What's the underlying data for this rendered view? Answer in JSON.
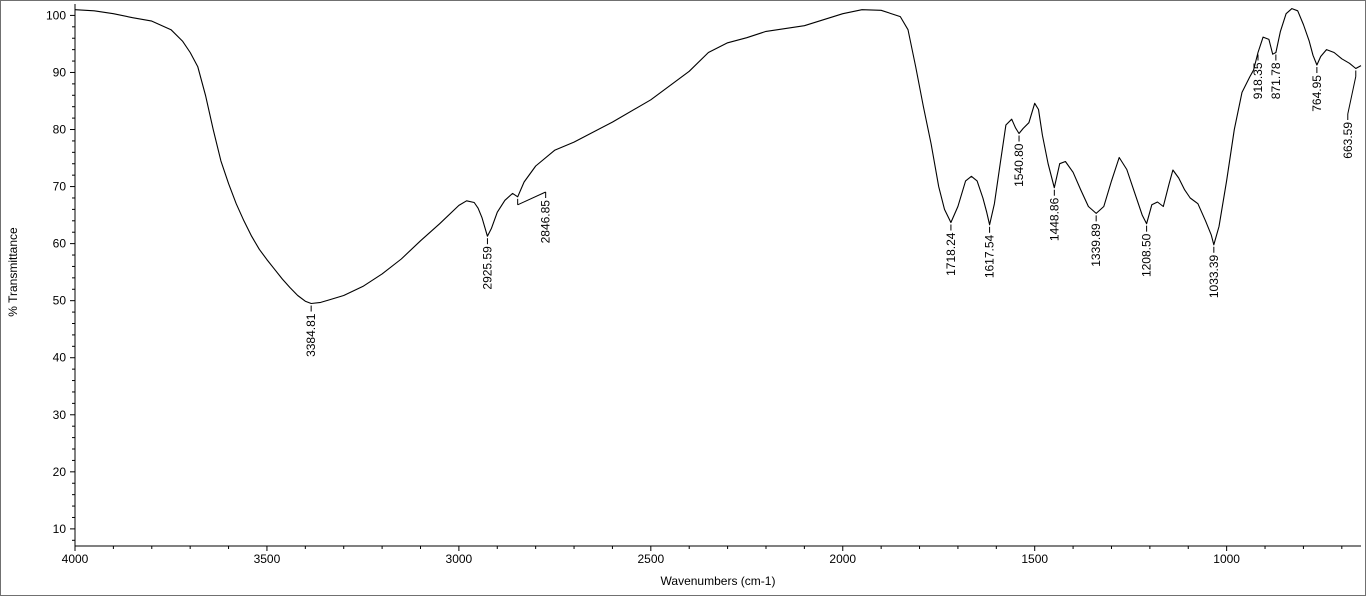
{
  "chart_data": {
    "type": "line",
    "title": "",
    "xlabel": "Wavenumbers (cm-1)",
    "ylabel": "% Transmittance",
    "xlim": [
      4000,
      650
    ],
    "ylim": [
      7,
      102
    ],
    "x_reversed": true,
    "grid": false,
    "x_ticks": [
      4000,
      3500,
      3000,
      2500,
      2000,
      1500,
      1000
    ],
    "y_ticks": [
      10,
      20,
      30,
      40,
      50,
      60,
      70,
      80,
      90,
      100
    ],
    "series": [
      {
        "points": [
          [
            4000,
            101
          ],
          [
            3950,
            100.8
          ],
          [
            3900,
            100.3
          ],
          [
            3850,
            99.6
          ],
          [
            3800,
            99.0
          ],
          [
            3750,
            97.5
          ],
          [
            3720,
            95.5
          ],
          [
            3700,
            93.5
          ],
          [
            3680,
            91
          ],
          [
            3660,
            86
          ],
          [
            3640,
            80
          ],
          [
            3620,
            74.5
          ],
          [
            3600,
            70.5
          ],
          [
            3580,
            67
          ],
          [
            3560,
            64
          ],
          [
            3540,
            61.3
          ],
          [
            3520,
            59
          ],
          [
            3500,
            57.2
          ],
          [
            3480,
            55.5
          ],
          [
            3460,
            53.8
          ],
          [
            3440,
            52.3
          ],
          [
            3420,
            50.9
          ],
          [
            3400,
            49.9
          ],
          [
            3384.81,
            49.5
          ],
          [
            3360,
            49.7
          ],
          [
            3340,
            50.1
          ],
          [
            3300,
            50.9
          ],
          [
            3250,
            52.5
          ],
          [
            3200,
            54.7
          ],
          [
            3150,
            57.3
          ],
          [
            3100,
            60.5
          ],
          [
            3050,
            63.5
          ],
          [
            3000,
            66.7
          ],
          [
            2980,
            67.5
          ],
          [
            2960,
            67.2
          ],
          [
            2950,
            66.2
          ],
          [
            2940,
            64.6
          ],
          [
            2925.59,
            61.3
          ],
          [
            2915,
            62.7
          ],
          [
            2900,
            65.5
          ],
          [
            2880,
            67.6
          ],
          [
            2860,
            68.8
          ],
          [
            2846.85,
            68.2
          ],
          [
            2830,
            70.8
          ],
          [
            2800,
            73.6
          ],
          [
            2750,
            76.4
          ],
          [
            2700,
            77.8
          ],
          [
            2600,
            81.3
          ],
          [
            2500,
            85.2
          ],
          [
            2400,
            90.2
          ],
          [
            2350,
            93.5
          ],
          [
            2300,
            95.2
          ],
          [
            2250,
            96.1
          ],
          [
            2200,
            97.2
          ],
          [
            2100,
            98.2
          ],
          [
            2000,
            100.3
          ],
          [
            1950,
            101.0
          ],
          [
            1900,
            100.9
          ],
          [
            1850,
            99.8
          ],
          [
            1830,
            97.5
          ],
          [
            1810,
            91
          ],
          [
            1790,
            84
          ],
          [
            1770,
            77.5
          ],
          [
            1750,
            70
          ],
          [
            1735,
            66
          ],
          [
            1718.24,
            63.7
          ],
          [
            1700,
            66.5
          ],
          [
            1680,
            71
          ],
          [
            1665,
            71.8
          ],
          [
            1650,
            71
          ],
          [
            1635,
            68
          ],
          [
            1625,
            65.5
          ],
          [
            1617.54,
            63.3
          ],
          [
            1605,
            67
          ],
          [
            1590,
            74
          ],
          [
            1575,
            80.8
          ],
          [
            1560,
            81.8
          ],
          [
            1550,
            80.3
          ],
          [
            1540.8,
            79.3
          ],
          [
            1530,
            80.2
          ],
          [
            1515,
            81.2
          ],
          [
            1500,
            84.6
          ],
          [
            1490,
            83.5
          ],
          [
            1480,
            79
          ],
          [
            1465,
            74
          ],
          [
            1448.86,
            69.8
          ],
          [
            1435,
            74
          ],
          [
            1420,
            74.4
          ],
          [
            1400,
            72.5
          ],
          [
            1380,
            69.4
          ],
          [
            1360,
            66.5
          ],
          [
            1339.89,
            65.3
          ],
          [
            1320,
            66.5
          ],
          [
            1300,
            71
          ],
          [
            1280,
            75.1
          ],
          [
            1260,
            73
          ],
          [
            1240,
            69
          ],
          [
            1220,
            65
          ],
          [
            1208.5,
            63.5
          ],
          [
            1195,
            66.8
          ],
          [
            1180,
            67.3
          ],
          [
            1165,
            66.5
          ],
          [
            1150,
            70.5
          ],
          [
            1140,
            72.9
          ],
          [
            1125,
            71.5
          ],
          [
            1110,
            69.5
          ],
          [
            1095,
            68
          ],
          [
            1075,
            67
          ],
          [
            1055,
            64
          ],
          [
            1040,
            61.5
          ],
          [
            1033.39,
            59.8
          ],
          [
            1020,
            63
          ],
          [
            1000,
            71
          ],
          [
            980,
            80
          ],
          [
            960,
            86.5
          ],
          [
            940,
            89.2
          ],
          [
            930,
            90.4
          ],
          [
            918.35,
            93.5
          ],
          [
            905,
            96.2
          ],
          [
            890,
            95.8
          ],
          [
            880,
            93.2
          ],
          [
            871.78,
            93.5
          ],
          [
            860,
            97.2
          ],
          [
            845,
            100.3
          ],
          [
            830,
            101.2
          ],
          [
            815,
            100.8
          ],
          [
            800,
            98.4
          ],
          [
            785,
            95.5
          ],
          [
            775,
            93
          ],
          [
            764.95,
            91.3
          ],
          [
            755,
            92.8
          ],
          [
            740,
            94
          ],
          [
            720,
            93.5
          ],
          [
            700,
            92.4
          ],
          [
            680,
            91.6
          ],
          [
            663.59,
            90.7
          ],
          [
            650,
            91.2
          ]
        ]
      }
    ],
    "peak_labels": [
      {
        "x": 3384.81,
        "text": "3384.81"
      },
      {
        "x": 2925.59,
        "text": "2925.59"
      },
      {
        "x": 2846.85,
        "text": "2846.85"
      },
      {
        "x": 1718.24,
        "text": "1718.24"
      },
      {
        "x": 1617.54,
        "text": "1617.54"
      },
      {
        "x": 1540.8,
        "text": "1540.80"
      },
      {
        "x": 1448.86,
        "text": "1448.86"
      },
      {
        "x": 1339.89,
        "text": "1339.89"
      },
      {
        "x": 1208.5,
        "text": "1208.50"
      },
      {
        "x": 1033.39,
        "text": "1033.39"
      },
      {
        "x": 918.35,
        "text": "918.35"
      },
      {
        "x": 871.78,
        "text": "871.78"
      },
      {
        "x": 764.95,
        "text": "764.95"
      },
      {
        "x": 663.59,
        "text": "663.59"
      }
    ]
  }
}
